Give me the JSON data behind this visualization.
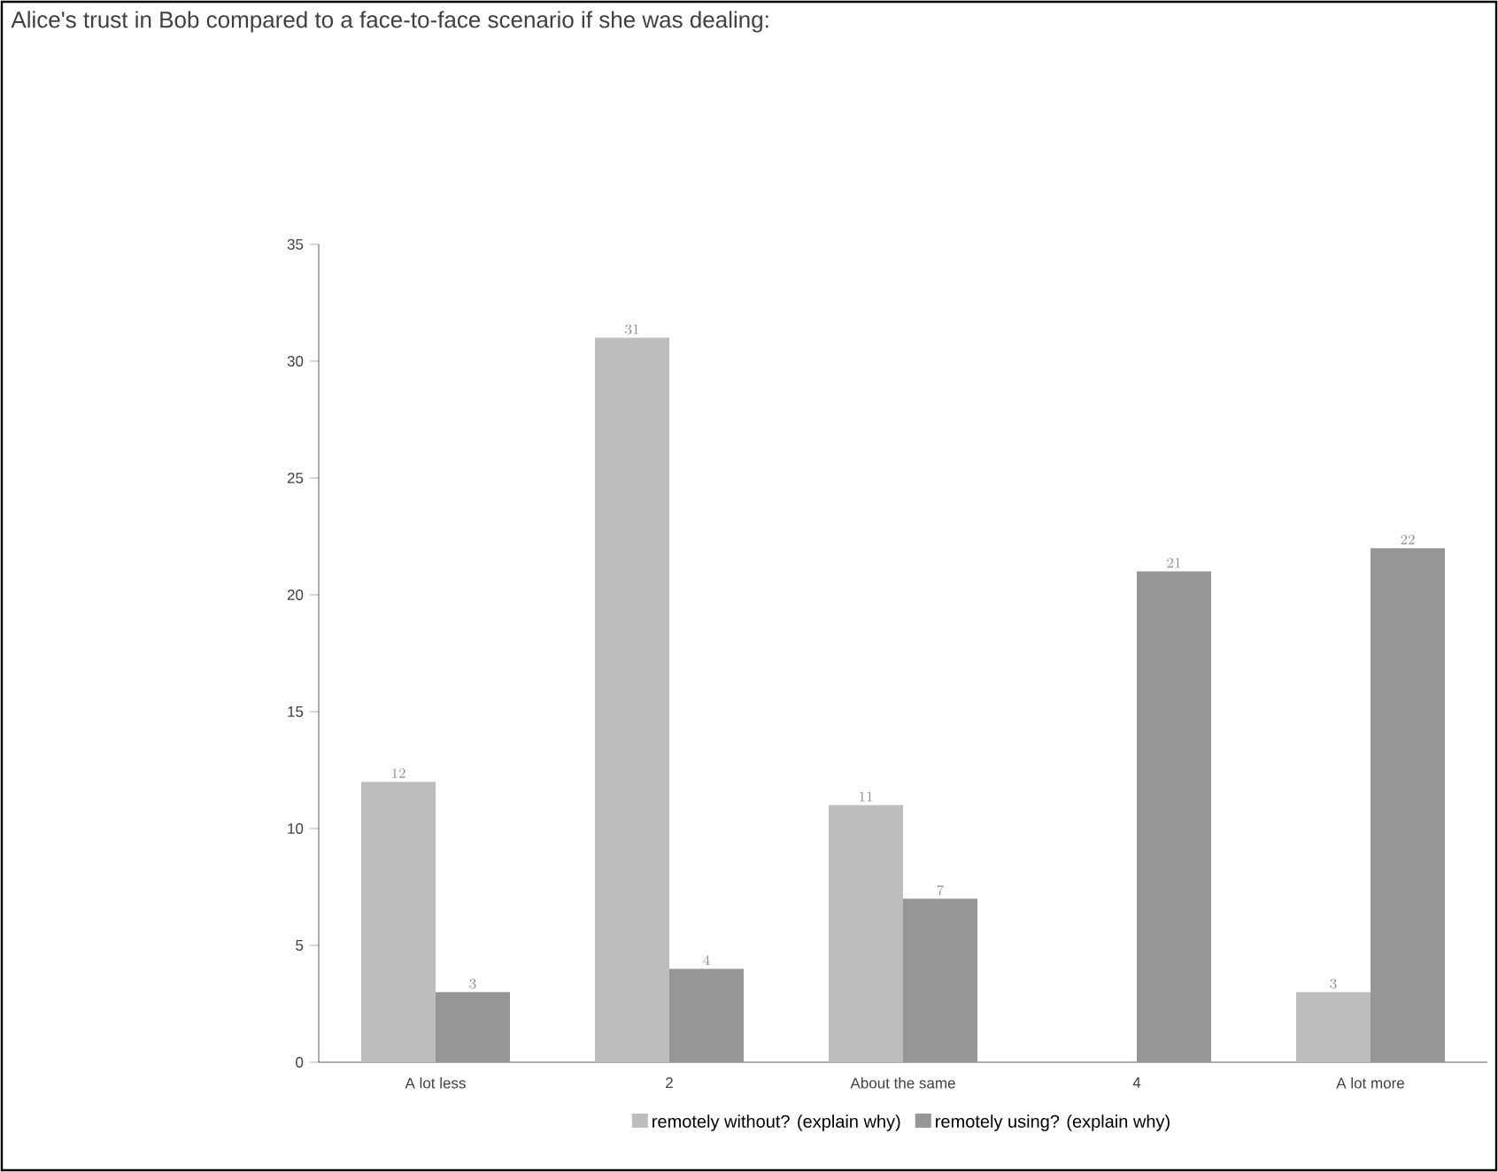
{
  "chart_data": {
    "type": "bar",
    "title": "Alice's trust in Bob compared to a face-to-face scenario if she was dealing:",
    "categories": [
      "A lot less",
      "2",
      "About the same",
      "4",
      "A lot more"
    ],
    "series": [
      {
        "name": "remotely without? (explain why)",
        "color": "#bdbdbd",
        "values": [
          12,
          31,
          11,
          null,
          3
        ]
      },
      {
        "name": "remotely using? (explain why)",
        "color": "#969696",
        "values": [
          3,
          4,
          7,
          21,
          22
        ]
      }
    ],
    "ylim": [
      0,
      35
    ],
    "yticks": [
      0,
      5,
      10,
      15,
      20,
      25,
      30,
      35
    ],
    "data_labels": true,
    "legend": "bottom",
    "grid": false
  }
}
